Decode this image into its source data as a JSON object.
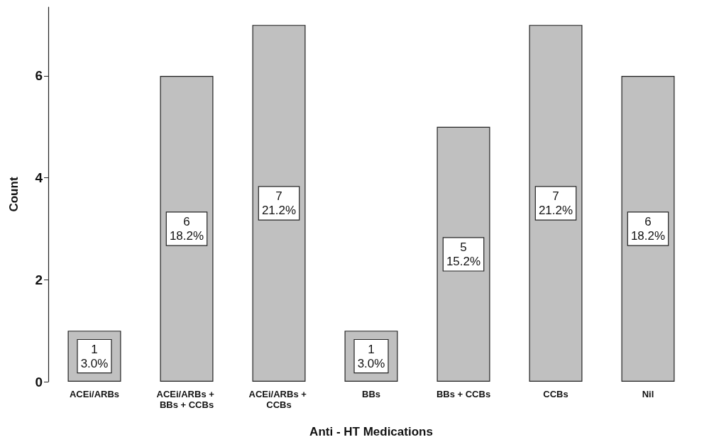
{
  "chart_data": {
    "type": "bar",
    "xlabel": "Anti - HT Medications",
    "ylabel": "Count",
    "categories": [
      "ACEi/ARBs",
      "ACEi/ARBs + BBs + CCBs",
      "ACEi/ARBs + CCBs",
      "BBs",
      "BBs + CCBs",
      "CCBs",
      "Nil"
    ],
    "values": [
      1,
      6,
      7,
      1,
      5,
      7,
      6
    ],
    "value_labels": [
      "1\n3.0%",
      "6\n18.2%",
      "7\n21.2%",
      "1\n3.0%",
      "5\n15.2%",
      "7\n21.2%",
      "6\n18.2%"
    ],
    "color": "#c0c0c0",
    "ylim": [
      0,
      7.35
    ],
    "yticks": [
      0,
      2,
      4,
      6
    ],
    "grid": false
  }
}
